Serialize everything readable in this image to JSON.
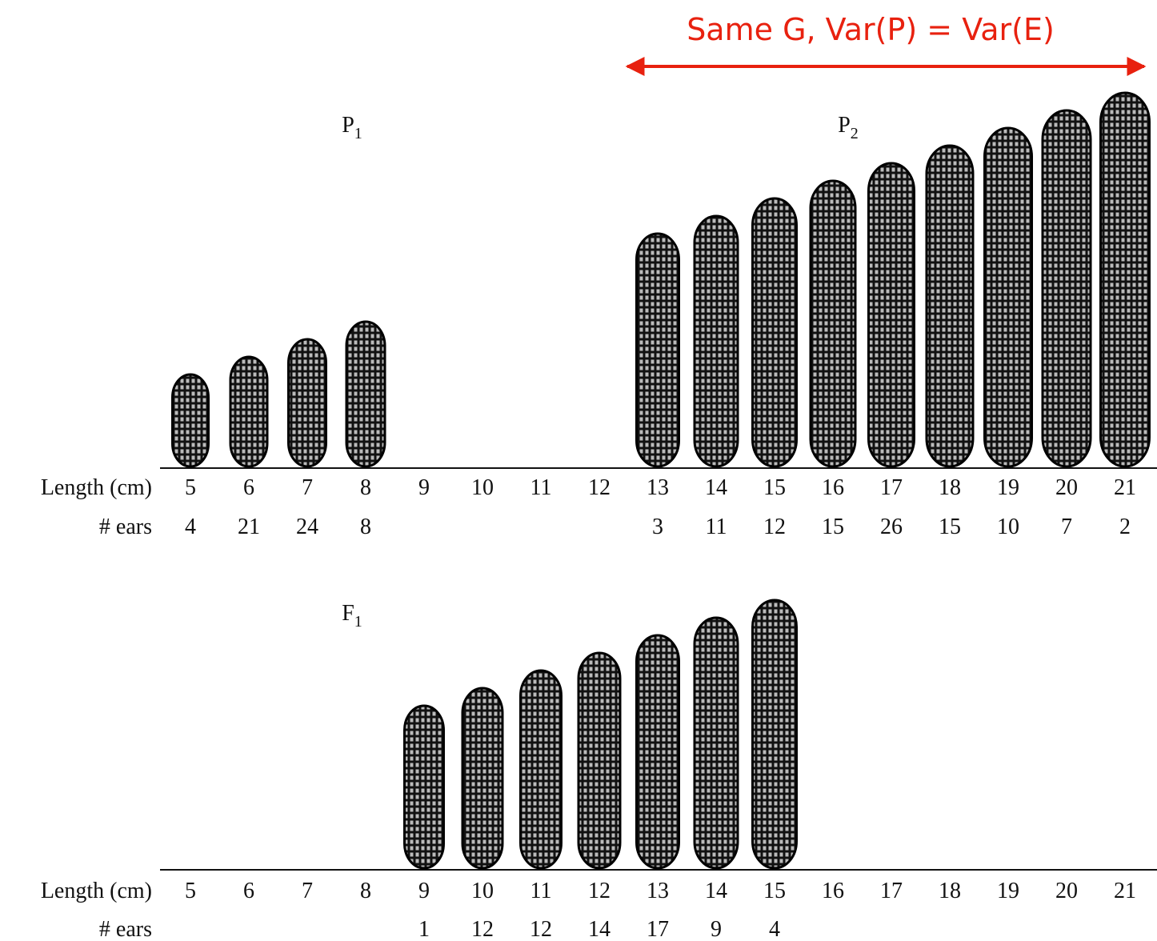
{
  "annotation": "Same G, Var(P) = Var(E)",
  "panels": [
    {
      "labels": [
        {
          "letter": "P",
          "subscript": "1"
        },
        {
          "letter": "P",
          "subscript": "2"
        }
      ],
      "row_labels": {
        "length": "Length (cm)",
        "ears": "# ears"
      },
      "lengths": [
        5,
        6,
        7,
        8,
        9,
        10,
        11,
        12,
        13,
        14,
        15,
        16,
        17,
        18,
        19,
        20,
        21
      ],
      "ears": [
        4,
        21,
        24,
        8,
        null,
        null,
        null,
        null,
        3,
        11,
        12,
        15,
        26,
        15,
        10,
        7,
        2
      ]
    },
    {
      "labels": [
        {
          "letter": "F",
          "subscript": "1"
        }
      ],
      "row_labels": {
        "length": "Length (cm)",
        "ears": "# ears"
      },
      "lengths": [
        5,
        6,
        7,
        8,
        9,
        10,
        11,
        12,
        13,
        14,
        15,
        16,
        17,
        18,
        19,
        20,
        21
      ],
      "ears": [
        null,
        null,
        null,
        null,
        1,
        12,
        12,
        14,
        17,
        9,
        4,
        null,
        null,
        null,
        null,
        null,
        null
      ]
    }
  ]
}
